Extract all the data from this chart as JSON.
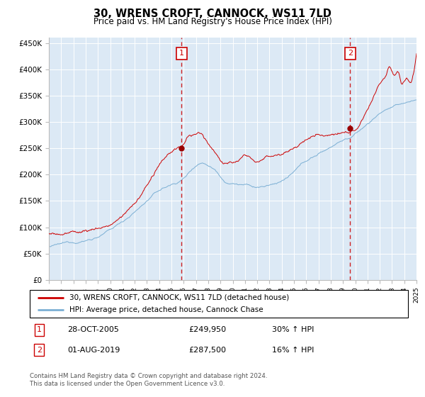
{
  "title": "30, WRENS CROFT, CANNOCK, WS11 7LD",
  "subtitle": "Price paid vs. HM Land Registry's House Price Index (HPI)",
  "background_color": "#dce9f5",
  "plot_bg_color": "#dce9f5",
  "red_line_color": "#cc0000",
  "blue_line_color": "#7bafd4",
  "dashed_line_color": "#cc0000",
  "ylim": [
    0,
    460000
  ],
  "yticks": [
    0,
    50000,
    100000,
    150000,
    200000,
    250000,
    300000,
    350000,
    400000,
    450000
  ],
  "ytick_labels": [
    "£0",
    "£50K",
    "£100K",
    "£150K",
    "£200K",
    "£250K",
    "£300K",
    "£350K",
    "£400K",
    "£450K"
  ],
  "sale1_year": 2005.83,
  "sale1_price": 249950,
  "sale2_year": 2019.58,
  "sale2_price": 287500,
  "sale1_date": "28-OCT-2005",
  "sale1_pct": "30% ↑ HPI",
  "sale2_date": "01-AUG-2019",
  "sale2_pct": "16% ↑ HPI",
  "legend_line1": "30, WRENS CROFT, CANNOCK, WS11 7LD (detached house)",
  "legend_line2": "HPI: Average price, detached house, Cannock Chase",
  "footnote": "Contains HM Land Registry data © Crown copyright and database right 2024.\nThis data is licensed under the Open Government Licence v3.0.",
  "xmin": 1995,
  "xmax": 2025
}
